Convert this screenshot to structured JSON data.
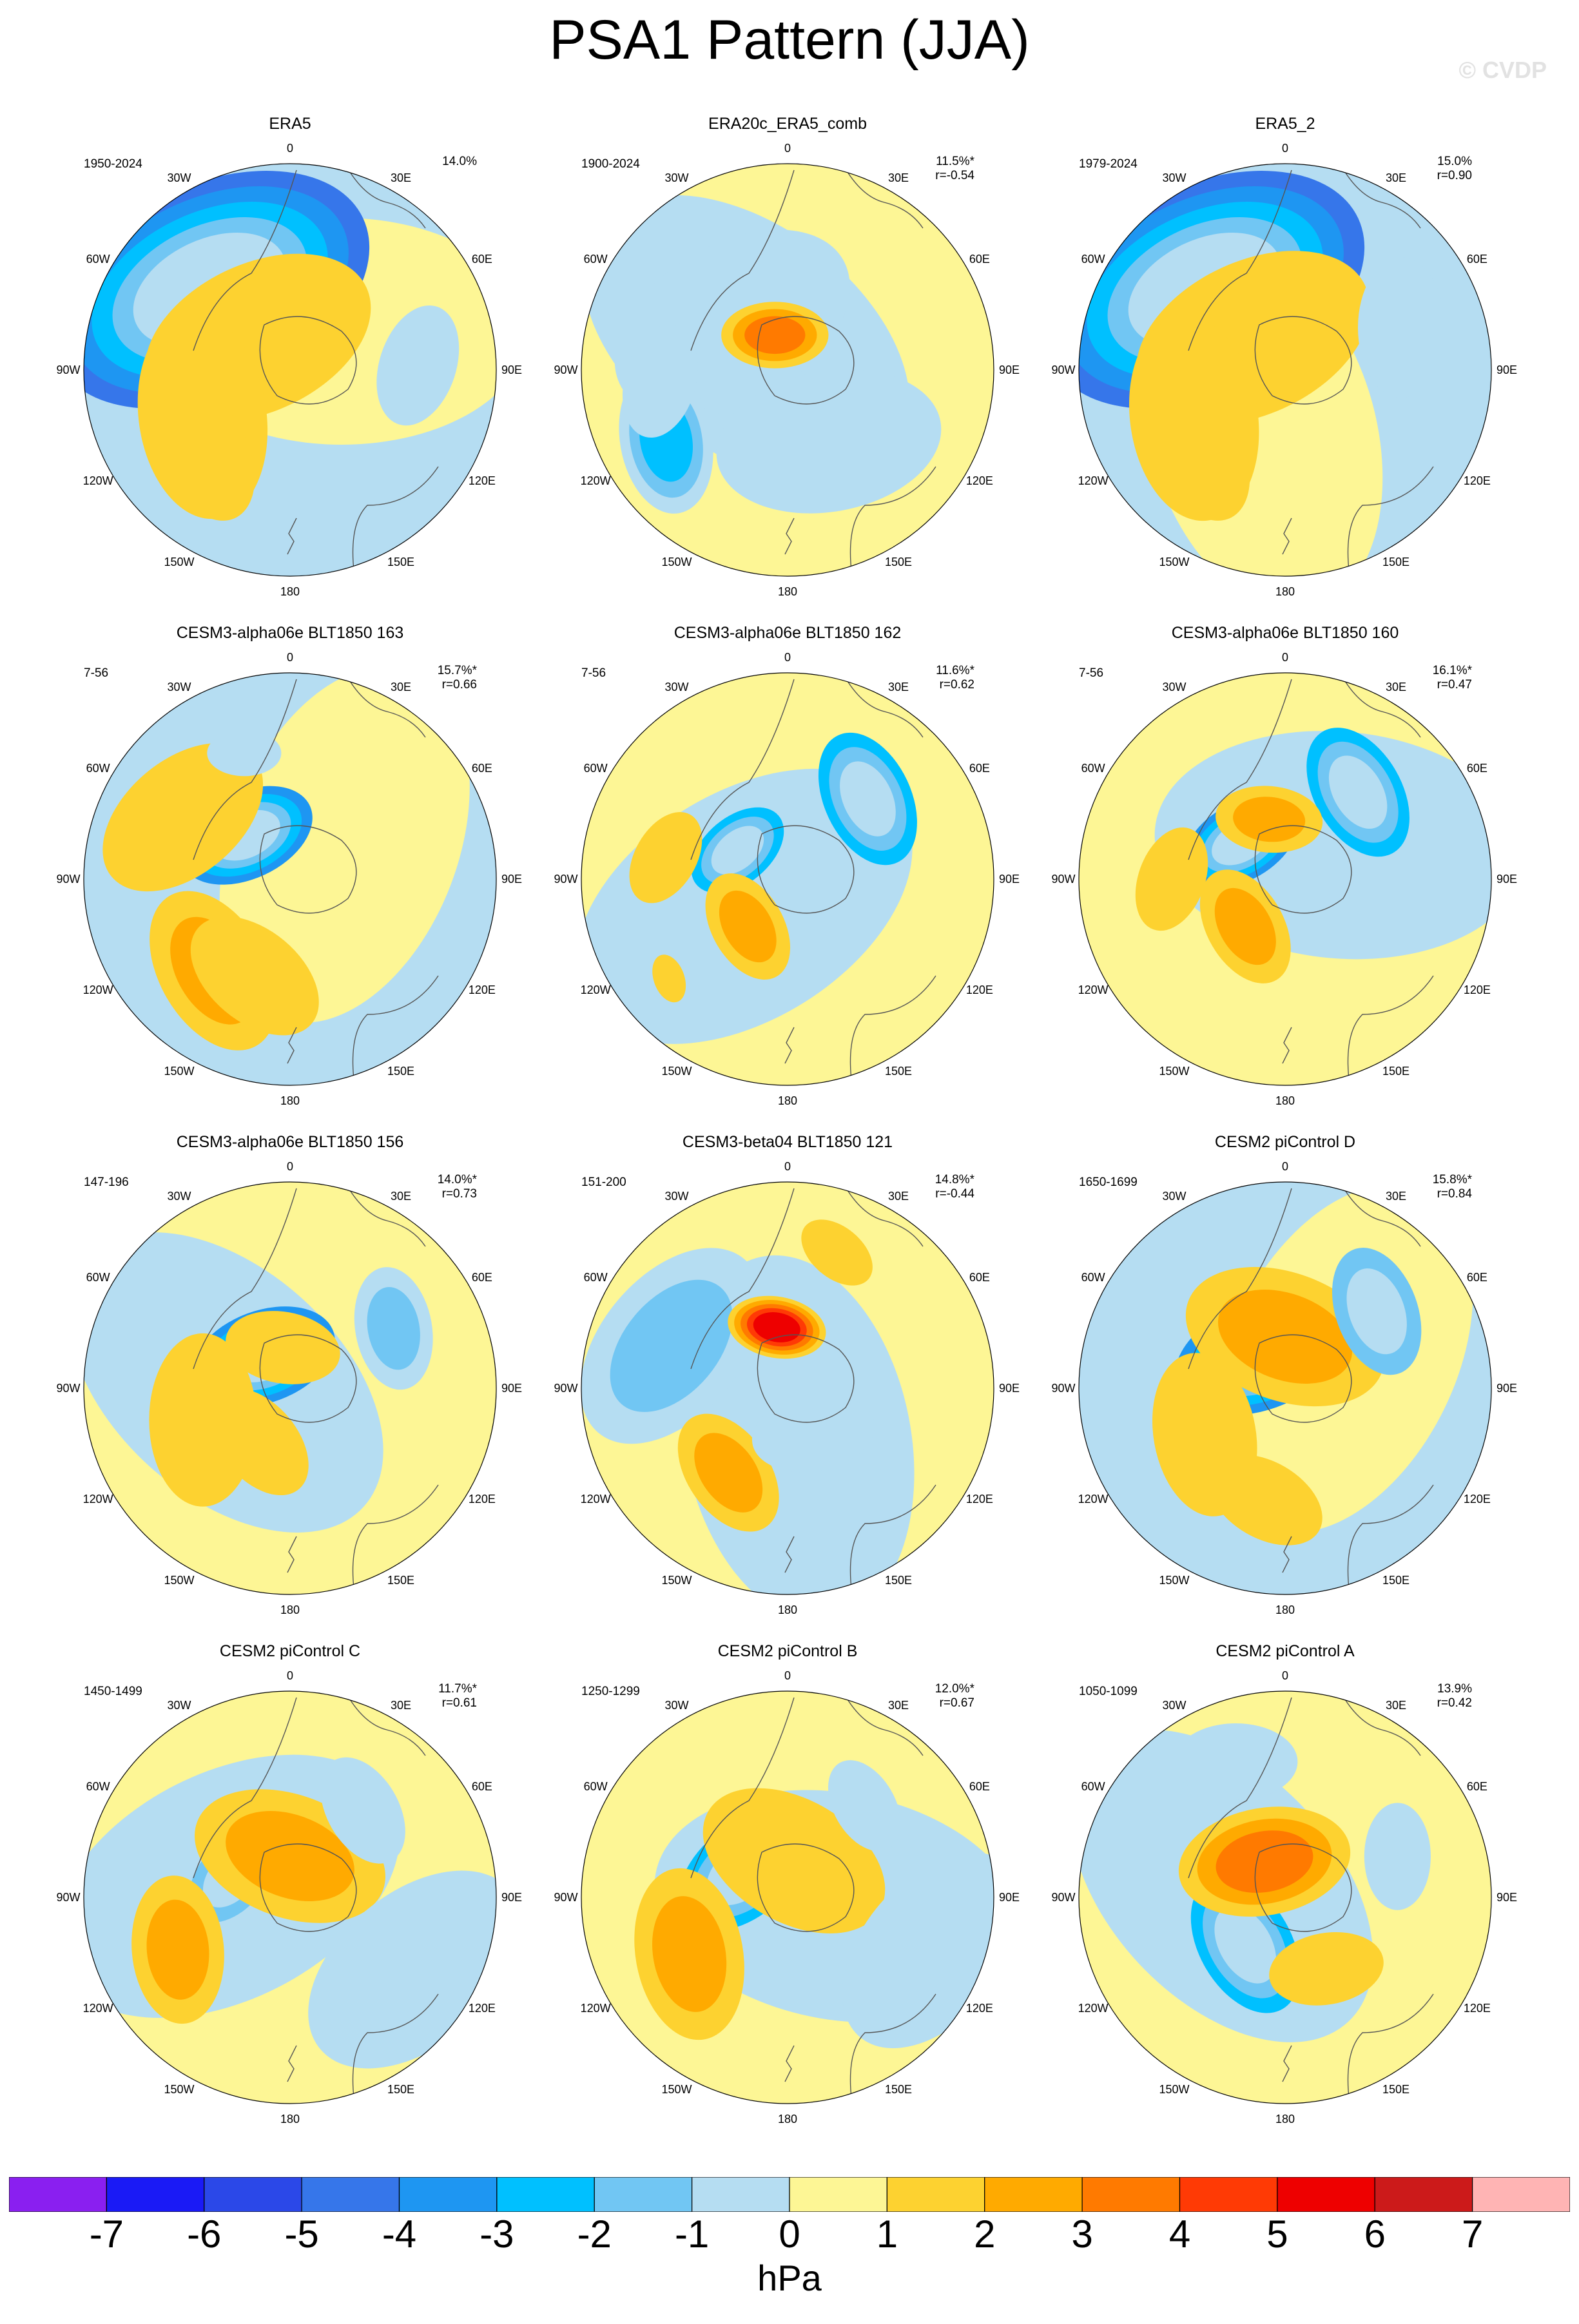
{
  "title": "PSA1 Pattern (JJA)",
  "watermark": "© CVDP",
  "units": "hPa",
  "colors": {
    "levels": [
      "#8a1ff0",
      "#1a1af6",
      "#2b48e8",
      "#3676ea",
      "#1e96f2",
      "#00c0ff",
      "#71c6f3",
      "#b5ddf2",
      "#fdf695",
      "#fdd230",
      "#ffaa00",
      "#ff7a00",
      "#ff3a05",
      "#ee0000",
      "#cc1a1a",
      "#ffb4b4"
    ],
    "ocean": "#b5ddf2",
    "coast": "#555555"
  },
  "colorbar_ticks": [
    "-7",
    "-6",
    "-5",
    "-4",
    "-3",
    "-2",
    "-1",
    "0",
    "1",
    "2",
    "3",
    "4",
    "5",
    "6",
    "7"
  ],
  "lon_labels": [
    "0",
    "30E",
    "60E",
    "90E",
    "120E",
    "150E",
    "180",
    "150W",
    "120W",
    "90W",
    "60W",
    "30W"
  ],
  "panels": [
    {
      "title": "ERA5",
      "period": "1950-2024",
      "pct": "14.0%",
      "r": "",
      "base": "ocean",
      "features": [
        [
          -45,
          0.55,
          1.0,
          "pos",
          0.82
        ],
        [
          -45,
          0.22,
          1.0,
          "neg",
          0.58
        ],
        [
          -118,
          0.48,
          1.1,
          "pos",
          0.5
        ],
        [
          -135,
          0.58,
          0.65,
          "pos",
          0.34
        ],
        [
          88,
          0.62,
          0.7,
          "neg",
          0.3
        ]
      ],
      "levels": [
        [
          -5,
          -4,
          -3,
          -2,
          -1
        ],
        [
          1
        ],
        [
          1
        ],
        [
          1
        ],
        [
          -1
        ]
      ]
    },
    {
      "title": "ERA20c_ERA5_comb",
      "period": "1900-2024",
      "pct": "11.5%*",
      "r": "r=-0.54",
      "base": "land",
      "features": [
        [
          -50,
          0.35,
          1.0,
          "neg",
          0.62
        ],
        [
          -20,
          0.18,
          1.0,
          "pos",
          0.26
        ],
        [
          -120,
          0.68,
          0.85,
          "neg",
          0.36
        ],
        [
          150,
          0.4,
          0.8,
          "neg",
          0.55
        ],
        [
          -95,
          0.62,
          0.6,
          "neg",
          0.28
        ]
      ],
      "levels": [
        [
          -1
        ],
        [
          1,
          2,
          3
        ],
        [
          -1,
          -2,
          -3
        ],
        [
          -1
        ],
        [
          -1
        ]
      ]
    },
    {
      "title": "ERA5_2",
      "period": "1979-2024",
      "pct": "15.0%",
      "r": "r=0.90",
      "base": "ocean",
      "features": [
        [
          -45,
          0.55,
          1.0,
          "pos",
          0.82
        ],
        [
          -45,
          0.22,
          1.0,
          "neg",
          0.6
        ],
        [
          -118,
          0.5,
          1.1,
          "pos",
          0.5
        ],
        [
          -135,
          0.58,
          0.65,
          "pos",
          0.34
        ],
        [
          70,
          0.6,
          0.7,
          "neg",
          0.34
        ]
      ],
      "levels": [
        [
          -5,
          -4,
          -3,
          -2,
          -1
        ],
        [
          1
        ],
        [
          1
        ],
        [
          1
        ],
        [
          -1
        ]
      ]
    },
    {
      "title": "CESM3-alpha06e BLT1850 163",
      "period": "7-56",
      "pct": "15.7%*",
      "r": "r=0.66",
      "base": "ocean",
      "features": [
        [
          -45,
          0.3,
          1.0,
          "neg",
          0.34
        ],
        [
          -140,
          0.58,
          1.0,
          "pos",
          0.42
        ],
        [
          -160,
          0.5,
          0.9,
          "pos",
          0.36
        ],
        [
          -60,
          0.6,
          0.8,
          "pos",
          0.45
        ],
        [
          -20,
          0.65,
          0.6,
          "neg",
          0.18
        ]
      ],
      "levels": [
        [
          -4,
          -3,
          -2,
          -1
        ],
        [
          1,
          2
        ],
        [
          1
        ],
        [
          1
        ],
        [
          -1
        ]
      ]
    },
    {
      "title": "CESM3-alpha06e BLT1850 162",
      "period": "7-56",
      "pct": "11.6%*",
      "r": "r=0.62",
      "base": "land",
      "features": [
        [
          -60,
          0.28,
          1.0,
          "neg",
          0.26
        ],
        [
          45,
          0.55,
          0.9,
          "neg",
          0.34
        ],
        [
          -140,
          0.3,
          0.9,
          "pos",
          0.28
        ],
        [
          -80,
          0.6,
          0.8,
          "pos",
          0.24
        ],
        [
          -130,
          0.75,
          0.6,
          "pos",
          0.12
        ]
      ],
      "levels": [
        [
          -3,
          -2,
          -1
        ],
        [
          -3,
          -2,
          -1
        ],
        [
          1,
          2
        ],
        [
          1
        ],
        [
          1
        ]
      ]
    },
    {
      "title": "CESM3-alpha06e BLT1850 160",
      "period": "7-56",
      "pct": "16.1%*",
      "r": "r=0.47",
      "base": "land",
      "features": [
        [
          -50,
          0.28,
          1.0,
          "neg",
          0.3
        ],
        [
          40,
          0.55,
          1.0,
          "neg",
          0.34
        ],
        [
          -140,
          0.3,
          0.9,
          "pos",
          0.3
        ],
        [
          -15,
          0.3,
          0.8,
          "pos",
          0.26
        ],
        [
          -90,
          0.55,
          0.8,
          "pos",
          0.26
        ]
      ],
      "levels": [
        [
          -4,
          -3,
          -2,
          -1
        ],
        [
          -3,
          -2,
          -1
        ],
        [
          1,
          2
        ],
        [
          1,
          2
        ],
        [
          1
        ]
      ]
    },
    {
      "title": "CESM3-alpha06e BLT1850 156",
      "period": "147-196",
      "pct": "14.0%*",
      "r": "r=0.73",
      "base": "land",
      "features": [
        [
          -40,
          0.2,
          1.0,
          "neg",
          0.36
        ],
        [
          60,
          0.58,
          0.9,
          "neg",
          0.3
        ],
        [
          -110,
          0.45,
          1.0,
          "pos",
          0.42
        ],
        [
          -150,
          0.3,
          0.8,
          "pos",
          0.3
        ],
        [
          -10,
          0.2,
          0.8,
          "pos",
          0.28
        ]
      ],
      "levels": [
        [
          -4,
          -3,
          -2,
          -1
        ],
        [
          -1,
          -2
        ],
        [
          1
        ],
        [
          1
        ],
        [
          1
        ]
      ]
    },
    {
      "title": "CESM3-beta04 BLT1850 121",
      "period": "151-200",
      "pct": "14.8%*",
      "r": "r=-0.44",
      "base": "land",
      "features": [
        [
          -70,
          0.6,
          1.0,
          "neg",
          0.55
        ],
        [
          -10,
          0.3,
          0.9,
          "pos",
          0.24
        ],
        [
          -145,
          0.5,
          0.9,
          "pos",
          0.32
        ],
        [
          20,
          0.7,
          0.6,
          "pos",
          0.2
        ],
        [
          150,
          0.25,
          0.9,
          "neg",
          0.3
        ]
      ],
      "levels": [
        [
          -1,
          -2
        ],
        [
          1,
          2,
          3,
          4,
          5
        ],
        [
          1,
          2
        ],
        [
          1
        ],
        [
          -1
        ]
      ]
    },
    {
      "title": "CESM2 piControl D",
      "period": "1650-1699",
      "pct": "15.8%*",
      "r": "r=0.84",
      "base": "ocean",
      "features": [
        [
          -40,
          0.2,
          1.0,
          "neg",
          0.42
        ],
        [
          0,
          0.25,
          0.9,
          "pos",
          0.5
        ],
        [
          -120,
          0.45,
          0.9,
          "pos",
          0.4
        ],
        [
          50,
          0.58,
          0.8,
          "neg",
          0.32
        ],
        [
          -170,
          0.55,
          0.8,
          "pos",
          0.3
        ]
      ],
      "levels": [
        [
          -4,
          -3,
          -2,
          -1
        ],
        [
          1,
          2
        ],
        [
          1
        ],
        [
          -2,
          -1
        ],
        [
          1
        ]
      ]
    },
    {
      "title": "CESM2 piControl C",
      "period": "1450-1499",
      "pct": "11.7%*",
      "r": "r=0.61",
      "base": "land",
      "features": [
        [
          -70,
          0.3,
          1.0,
          "neg",
          0.26
        ],
        [
          0,
          0.2,
          0.9,
          "pos",
          0.48
        ],
        [
          -115,
          0.6,
          0.9,
          "pos",
          0.36
        ],
        [
          40,
          0.55,
          0.7,
          "neg",
          0.28
        ],
        [
          120,
          0.7,
          0.9,
          "neg",
          0.6
        ]
      ],
      "levels": [
        [
          -2,
          -1
        ],
        [
          1,
          2
        ],
        [
          1,
          2
        ],
        [
          -1
        ],
        [
          -1
        ]
      ]
    },
    {
      "title": "CESM2 piControl B",
      "period": "1250-1299",
      "pct": "12.0%*",
      "r": "r=0.67",
      "base": "land",
      "features": [
        [
          -60,
          0.25,
          1.0,
          "neg",
          0.36
        ],
        [
          10,
          0.18,
          0.9,
          "pos",
          0.48
        ],
        [
          -120,
          0.55,
          0.9,
          "pos",
          0.42
        ],
        [
          110,
          0.75,
          0.9,
          "neg",
          0.55
        ],
        [
          40,
          0.58,
          0.7,
          "neg",
          0.24
        ]
      ],
      "levels": [
        [
          -3,
          -2,
          -1
        ],
        [
          1
        ],
        [
          1,
          2
        ],
        [
          -1
        ],
        [
          -1
        ]
      ]
    },
    {
      "title": "CESM2 piControl A",
      "period": "1050-1099",
      "pct": "13.9%",
      "r": "r=0.42",
      "base": "land",
      "features": [
        [
          -140,
          0.3,
          1.0,
          "neg",
          0.36
        ],
        [
          -30,
          0.2,
          1.0,
          "pos",
          0.42
        ],
        [
          -20,
          0.7,
          0.9,
          "neg",
          0.3
        ],
        [
          70,
          0.58,
          0.7,
          "neg",
          0.26
        ],
        [
          150,
          0.4,
          0.8,
          "pos",
          0.28
        ]
      ],
      "levels": [
        [
          -3,
          -2,
          -1
        ],
        [
          1,
          2,
          3
        ],
        [
          -1
        ],
        [
          -1
        ],
        [
          1
        ]
      ]
    }
  ]
}
